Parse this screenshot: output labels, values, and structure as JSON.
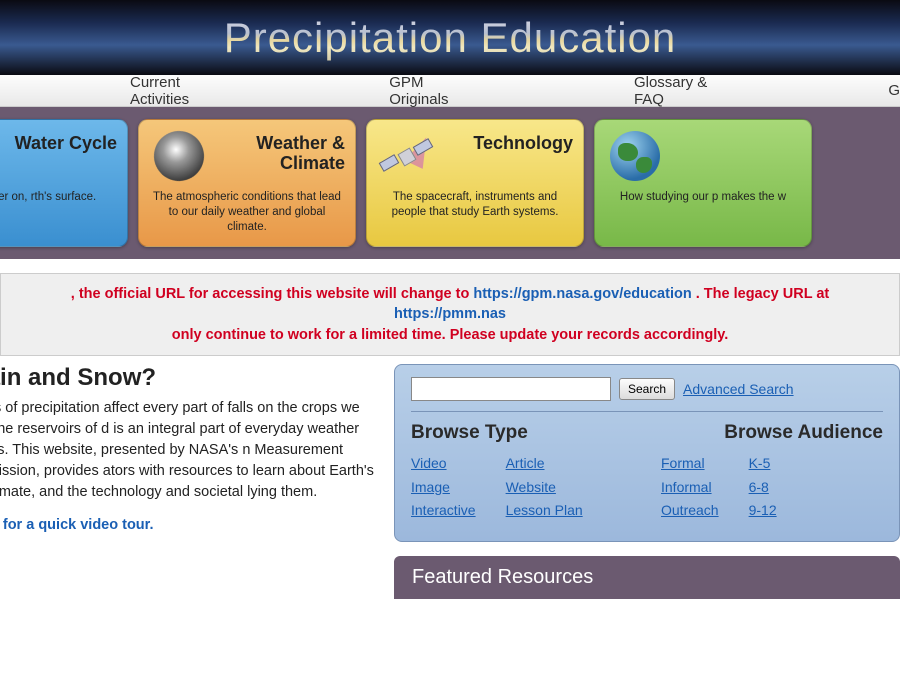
{
  "header": {
    "title": "Precipitation Education"
  },
  "topnav": {
    "items": [
      "Current Activities",
      "GPM Originals",
      "Glossary  &  FAQ",
      "G"
    ]
  },
  "cards": [
    {
      "title": "Water Cycle",
      "desc": "nent of water on,\nrth's surface.",
      "bg": "card-blue",
      "icon": ""
    },
    {
      "title": "Weather & Climate",
      "desc": "The atmospheric conditions that lead to our daily weather and global climate.",
      "bg": "card-orange",
      "icon": "hurricane"
    },
    {
      "title": "Technology",
      "desc": "The spacecraft, instruments and people that study Earth systems.",
      "bg": "card-yellow",
      "icon": "satellite"
    },
    {
      "title": "",
      "desc": "How studying our p\nmakes the w",
      "bg": "card-green",
      "icon": "globe",
      "title2": ""
    }
  ],
  "notice": {
    "pre": ", the official URL for accessing this website will change to ",
    "url1": "https://gpm.nasa.gov/education",
    "mid": ". The legacy URL at ",
    "url2": "https://pmm.nas",
    "line2": "only continue to work for a limited time. Please update your records accordingly."
  },
  "intro": {
    "heading": "re Rain and Snow?",
    "body": "ner forms of precipitation affect every part of falls on the crops we eat, fills the reservoirs of d is an integral part of everyday weather and rends. This website, presented by NASA's n Measurement (GPM) mission, provides ators with resources to learn about Earth's er and climate, and the technology and societal lying them.",
    "tour": "lick here for a quick video tour."
  },
  "search": {
    "button": "Search",
    "advanced": "Advanced Search",
    "placeholder": ""
  },
  "browse_type": {
    "heading": "Browse Type",
    "col1": [
      "Video",
      "Image",
      "Interactive"
    ],
    "col2": [
      "Article",
      "Website",
      "Lesson Plan"
    ]
  },
  "browse_audience": {
    "heading": "Browse Audience",
    "col1": [
      "Formal",
      "Informal",
      "Outreach"
    ],
    "col2": [
      "K-5",
      "6-8",
      "9-12"
    ]
  },
  "featured": {
    "heading": "Featured Resources"
  },
  "colors": {
    "link": "#1a5fb4",
    "alert": "#d00020",
    "panel_border": "#7a94b8",
    "purple": "#6b5a70"
  }
}
